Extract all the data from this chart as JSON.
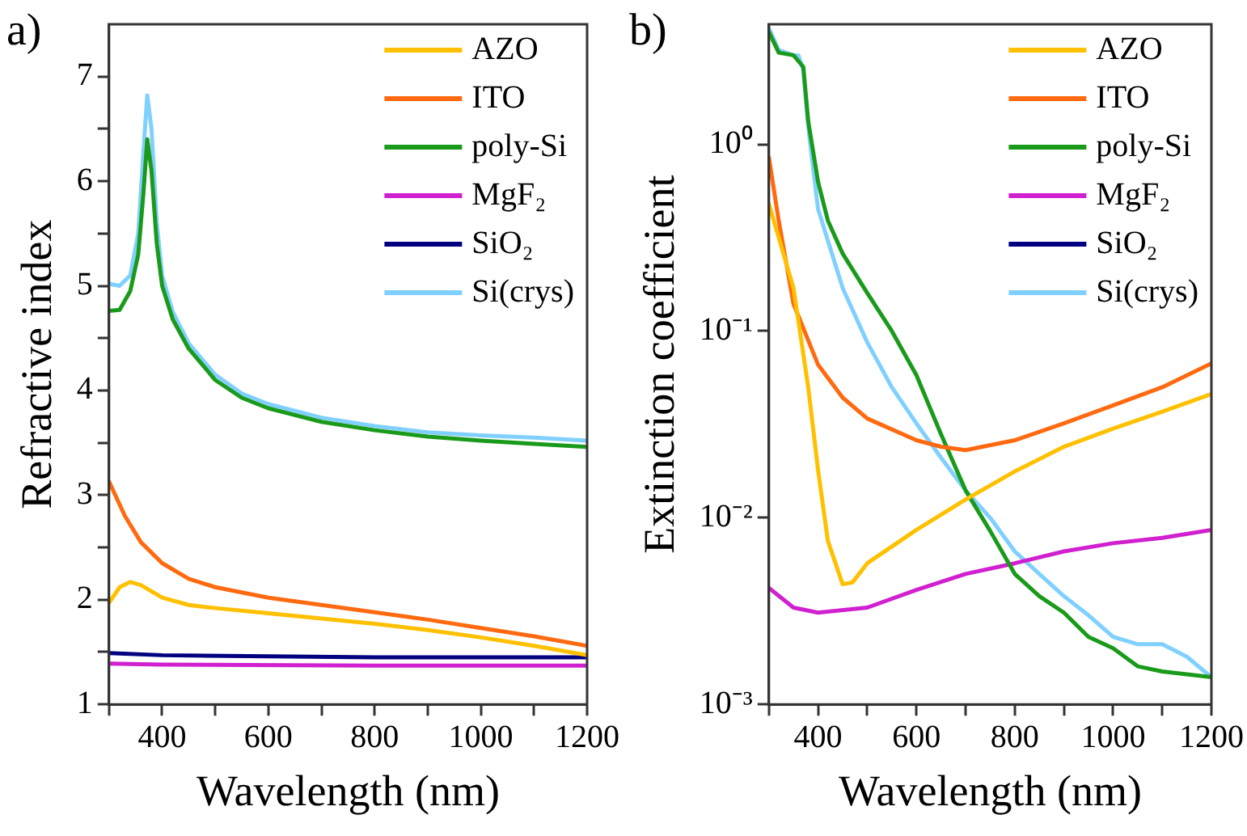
{
  "chart_data": [
    {
      "type": "line",
      "title": "a)",
      "xlabel": "Wavelength (nm)",
      "ylabel": "Refractive index",
      "xlim": [
        300,
        1200
      ],
      "ylim": [
        1,
        7.5
      ],
      "xticks": [
        {
          "value": 300,
          "label": null
        },
        400,
        {
          "value": 500,
          "label": null
        },
        600,
        {
          "value": 700,
          "label": null
        },
        800,
        {
          "value": 900,
          "label": null
        },
        1000,
        {
          "value": 1100,
          "label": null
        },
        1200
      ],
      "yticks": [
        1,
        {
          "value": 1.5,
          "label": null
        },
        2,
        {
          "value": 2.5,
          "label": null
        },
        3,
        {
          "value": 3.5,
          "label": null
        },
        4,
        {
          "value": 4.5,
          "label": null
        },
        5,
        {
          "value": 5.5,
          "label": null
        },
        6,
        {
          "value": 6.5,
          "label": null
        },
        7
      ],
      "grid": false,
      "legend": "top right",
      "marker": "none",
      "line_style": "solid",
      "series": [
        {
          "name": "AZO",
          "color": "#ffc000",
          "x": [
            300,
            320,
            340,
            360,
            400,
            450,
            500,
            600,
            700,
            800,
            900,
            1000,
            1100,
            1200
          ],
          "values": [
            1.97,
            2.12,
            2.17,
            2.14,
            2.02,
            1.95,
            1.92,
            1.87,
            1.82,
            1.77,
            1.71,
            1.64,
            1.56,
            1.47
          ]
        },
        {
          "name": "ITO",
          "color": "#ff6a10",
          "x": [
            300,
            330,
            360,
            400,
            450,
            500,
            600,
            700,
            800,
            900,
            1000,
            1100,
            1200
          ],
          "values": [
            3.13,
            2.8,
            2.55,
            2.35,
            2.2,
            2.12,
            2.02,
            1.95,
            1.88,
            1.81,
            1.73,
            1.65,
            1.56
          ]
        },
        {
          "name": "poly-Si",
          "color": "#1a9a1a",
          "x": [
            300,
            320,
            340,
            355,
            365,
            372,
            380,
            390,
            400,
            420,
            450,
            500,
            550,
            600,
            700,
            800,
            900,
            1000,
            1100,
            1200
          ],
          "values": [
            4.76,
            4.77,
            4.95,
            5.3,
            5.9,
            6.4,
            6.1,
            5.4,
            5.0,
            4.68,
            4.4,
            4.1,
            3.93,
            3.83,
            3.7,
            3.62,
            3.56,
            3.52,
            3.49,
            3.46
          ]
        },
        {
          "name": "MgF₂",
          "color": "#d020d0",
          "x": [
            300,
            400,
            800,
            1200
          ],
          "values": [
            1.39,
            1.38,
            1.37,
            1.37
          ]
        },
        {
          "name": "SiO₂",
          "color": "#000080",
          "x": [
            300,
            400,
            600,
            800,
            1200
          ],
          "values": [
            1.49,
            1.47,
            1.46,
            1.45,
            1.45
          ]
        },
        {
          "name": "Si(crys)",
          "color": "#80d0ff",
          "x": [
            300,
            320,
            340,
            355,
            365,
            372,
            380,
            390,
            400,
            420,
            450,
            500,
            550,
            600,
            700,
            800,
            900,
            1000,
            1100,
            1200
          ],
          "values": [
            5.02,
            5.0,
            5.1,
            5.5,
            6.3,
            6.82,
            6.5,
            5.6,
            5.1,
            4.75,
            4.45,
            4.15,
            3.97,
            3.87,
            3.74,
            3.66,
            3.6,
            3.57,
            3.55,
            3.52
          ]
        }
      ]
    },
    {
      "type": "line",
      "title": "b)",
      "xlabel": "Wavelength (nm)",
      "ylabel": "Extinction coefficient",
      "log": true,
      "xlim": [
        300,
        1200
      ],
      "ylim": [
        0.001,
        4.4
      ],
      "xticks": [
        {
          "value": 300,
          "label": null
        },
        400,
        {
          "value": 500,
          "label": null
        },
        600,
        {
          "value": 700,
          "label": null
        },
        800,
        {
          "value": 900,
          "label": null
        },
        1000,
        {
          "value": 1100,
          "label": null
        },
        1200
      ],
      "yticks": [
        {
          "value": 0.001,
          "label": "10⁻³"
        },
        {
          "value": 0.01,
          "label": "10⁻²"
        },
        {
          "value": 0.1,
          "label": "10⁻¹"
        },
        {
          "value": 1,
          "label": "10⁰"
        }
      ],
      "grid": false,
      "legend": "top right",
      "marker": "none",
      "line_style": "solid",
      "series": [
        {
          "name": "AZO",
          "color": "#ffc000",
          "x": [
            300,
            350,
            380,
            400,
            420,
            450,
            470,
            500,
            600,
            700,
            800,
            900,
            1000,
            1100,
            1200
          ],
          "values": [
            0.48,
            0.17,
            0.05,
            0.018,
            0.0075,
            0.0044,
            0.0045,
            0.0057,
            0.0086,
            0.0125,
            0.0177,
            0.024,
            0.03,
            0.037,
            0.046
          ]
        },
        {
          "name": "ITO",
          "color": "#ff6a10",
          "x": [
            300,
            320,
            350,
            400,
            450,
            500,
            600,
            650,
            700,
            800,
            900,
            1000,
            1100,
            1200
          ],
          "values": [
            0.85,
            0.39,
            0.14,
            0.066,
            0.044,
            0.034,
            0.026,
            0.024,
            0.023,
            0.026,
            0.032,
            0.04,
            0.05,
            0.067
          ]
        },
        {
          "name": "poly-Si",
          "color": "#1a9a1a",
          "x": [
            300,
            320,
            350,
            370,
            380,
            400,
            420,
            450,
            500,
            550,
            600,
            650,
            700,
            750,
            800,
            850,
            900,
            950,
            1000,
            1050,
            1100,
            1200
          ],
          "values": [
            4.0,
            3.1,
            3.0,
            2.6,
            1.33,
            0.63,
            0.39,
            0.26,
            0.16,
            0.1,
            0.058,
            0.028,
            0.014,
            0.0085,
            0.005,
            0.0038,
            0.0031,
            0.0023,
            0.002,
            0.0016,
            0.0015,
            0.0014
          ]
        },
        {
          "name": "MgF₂",
          "color": "#d020d0",
          "x": [
            300,
            350,
            400,
            500,
            600,
            700,
            800,
            900,
            1000,
            1100,
            1200
          ],
          "values": [
            0.0042,
            0.0033,
            0.0031,
            0.0033,
            0.0041,
            0.005,
            0.0057,
            0.0066,
            0.0073,
            0.0078,
            0.0086
          ]
        },
        {
          "name": "SiO₂",
          "color": "#000080"
        },
        {
          "name": "Si(crys)",
          "color": "#80d0ff",
          "x": [
            300,
            320,
            350,
            360,
            370,
            380,
            400,
            450,
            500,
            550,
            600,
            650,
            700,
            750,
            800,
            850,
            900,
            950,
            1000,
            1050,
            1100,
            1150,
            1200
          ],
          "values": [
            4.2,
            3.2,
            3.0,
            3.0,
            2.5,
            1.24,
            0.45,
            0.17,
            0.087,
            0.05,
            0.032,
            0.021,
            0.014,
            0.01,
            0.0066,
            0.005,
            0.0038,
            0.003,
            0.0023,
            0.0021,
            0.0021,
            0.0018,
            0.0014
          ]
        }
      ]
    }
  ]
}
